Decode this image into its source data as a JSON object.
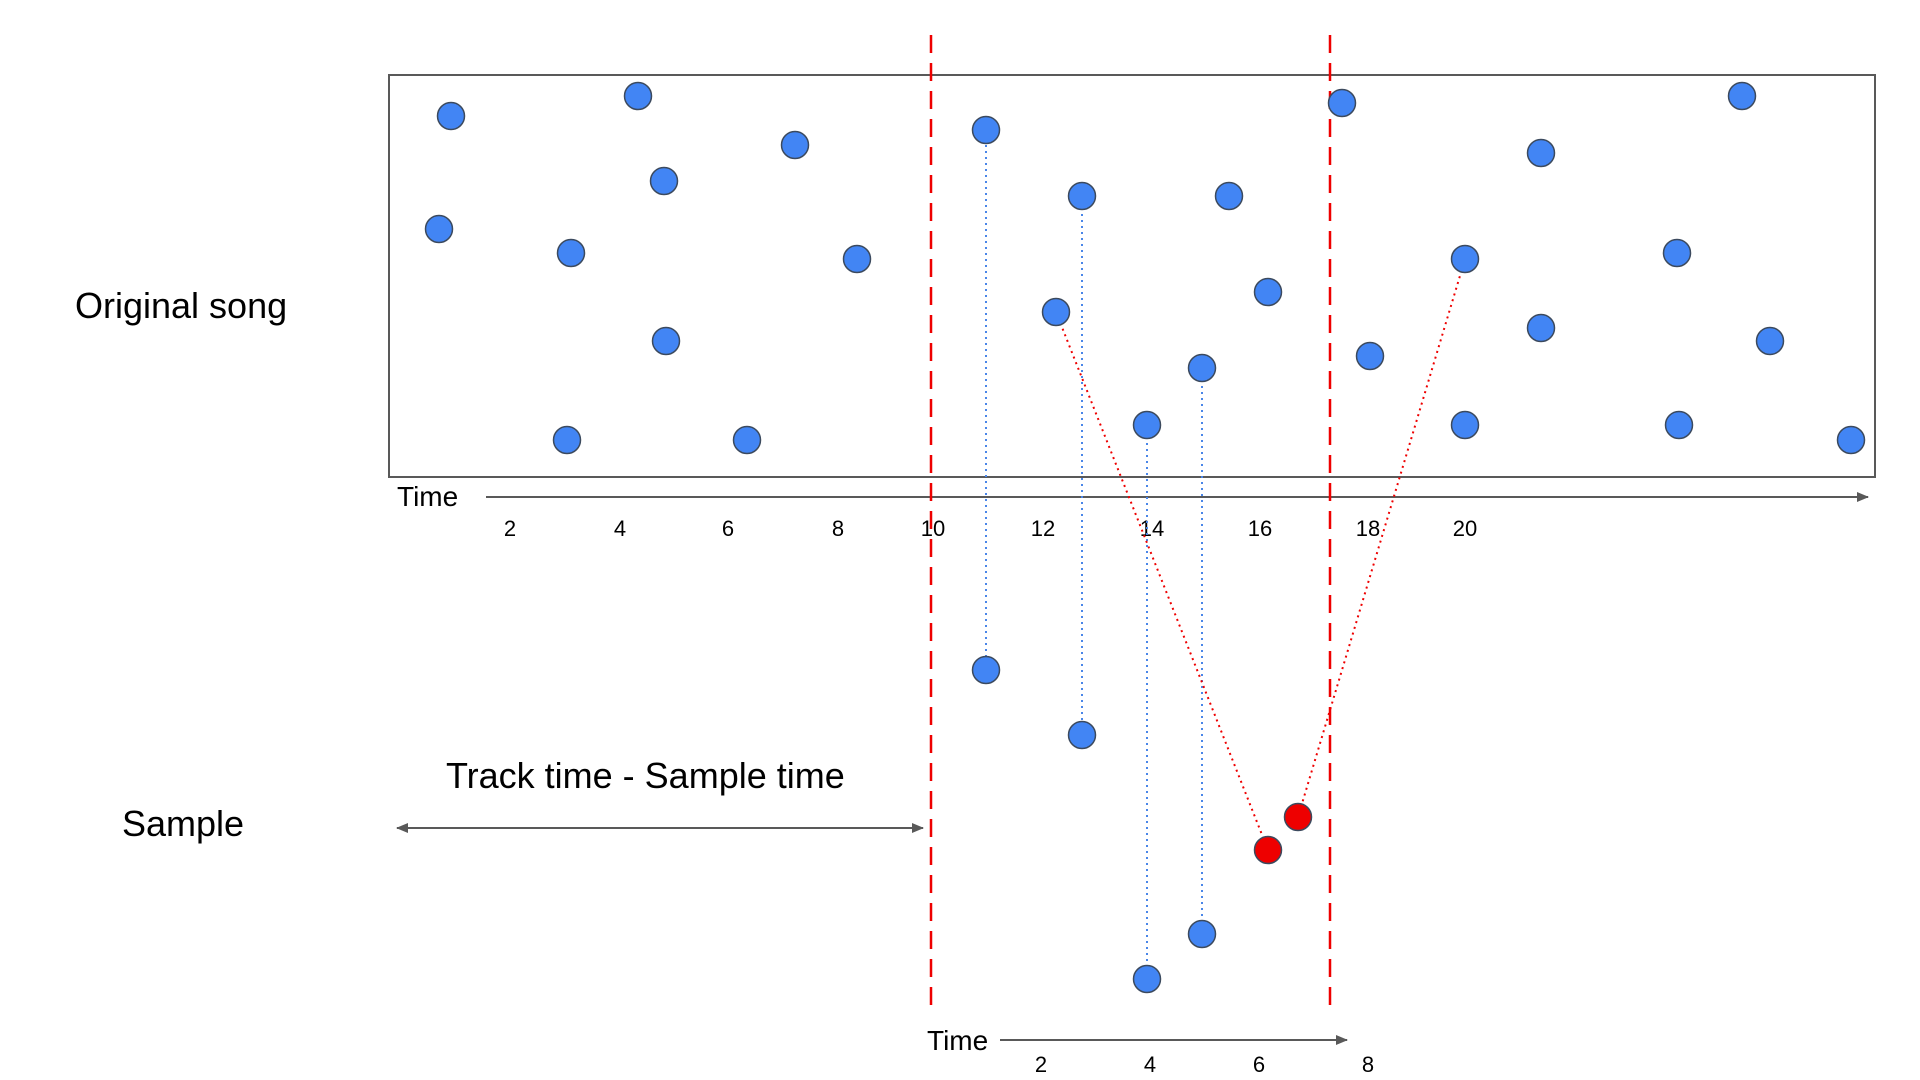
{
  "labels": {
    "original_song": "Original song",
    "sample": "Sample",
    "track_minus_sample": "Track time - Sample time",
    "song_axis_title": "Time",
    "sample_axis_title": "Time"
  },
  "song_axis_ticks": [
    "2",
    "4",
    "6",
    "8",
    "10",
    "12",
    "14",
    "16",
    "18",
    "20"
  ],
  "sample_axis_ticks": [
    "2",
    "4",
    "6",
    "8"
  ],
  "colors": {
    "point": "#4285f4",
    "point_stroke": "#3c4a5e",
    "mismatch_point": "#ee0000",
    "match_line": "#4a86e8",
    "mismatch_line": "#ee0000",
    "window_line": "#ee0000",
    "box_stroke": "#595959",
    "axis": "#595959"
  }
}
